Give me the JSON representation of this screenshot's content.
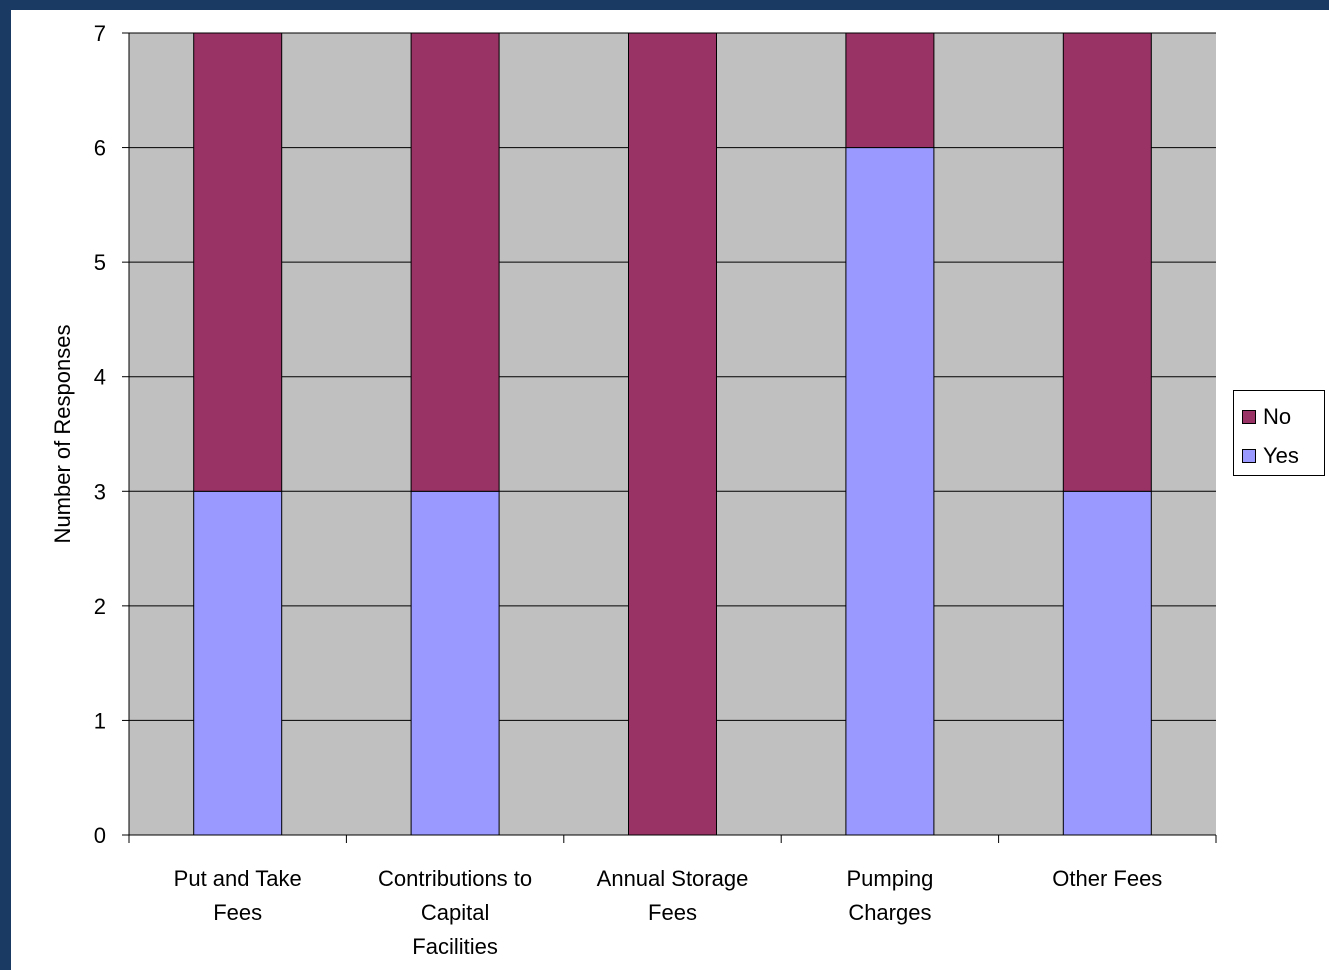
{
  "chart_data": {
    "type": "bar",
    "stacked": true,
    "categories": [
      [
        "Put and Take",
        "Fees"
      ],
      [
        "Contributions to",
        "Capital",
        "Facilities"
      ],
      [
        "Annual Storage",
        "Fees"
      ],
      [
        "Pumping",
        "Charges"
      ],
      [
        "Other Fees"
      ]
    ],
    "series": [
      {
        "name": "Yes",
        "values": [
          3,
          3,
          0,
          6,
          3
        ],
        "color": "#9999ff"
      },
      {
        "name": "No",
        "values": [
          4,
          4,
          7,
          1,
          4
        ],
        "color": "#993366"
      }
    ],
    "xlabel": "",
    "ylabel": "Number of Responses",
    "ylim": [
      0,
      7
    ],
    "yticks": [
      0,
      1,
      2,
      3,
      4,
      5,
      6,
      7
    ],
    "grid": true,
    "plot_background": "#c0c0c0",
    "legend_position": "right",
    "legend_order": [
      "No",
      "Yes"
    ]
  }
}
